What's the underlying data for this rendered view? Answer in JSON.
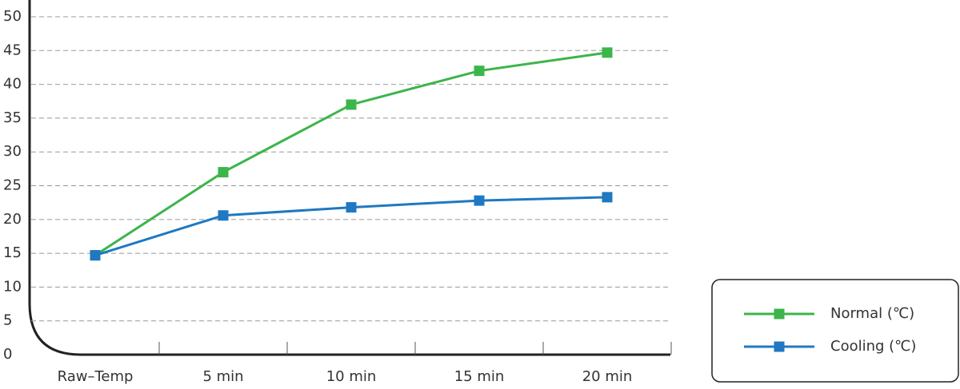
{
  "chart_data": {
    "type": "line",
    "categories": [
      "Raw–Temp",
      "5 min",
      "10 min",
      "15 min",
      "20 min"
    ],
    "series": [
      {
        "name": "Normal (℃)",
        "color": "#3cb54a",
        "values": [
          14.7,
          27,
          37,
          42,
          44.7
        ]
      },
      {
        "name": "Cooling (℃)",
        "color": "#1f78c1",
        "values": [
          14.7,
          20.6,
          21.8,
          22.8,
          23.3
        ]
      }
    ],
    "ylim": [
      0,
      50
    ],
    "yticks": [
      0,
      5,
      10,
      15,
      20,
      25,
      30,
      35,
      40,
      45,
      50
    ],
    "grid": true
  }
}
